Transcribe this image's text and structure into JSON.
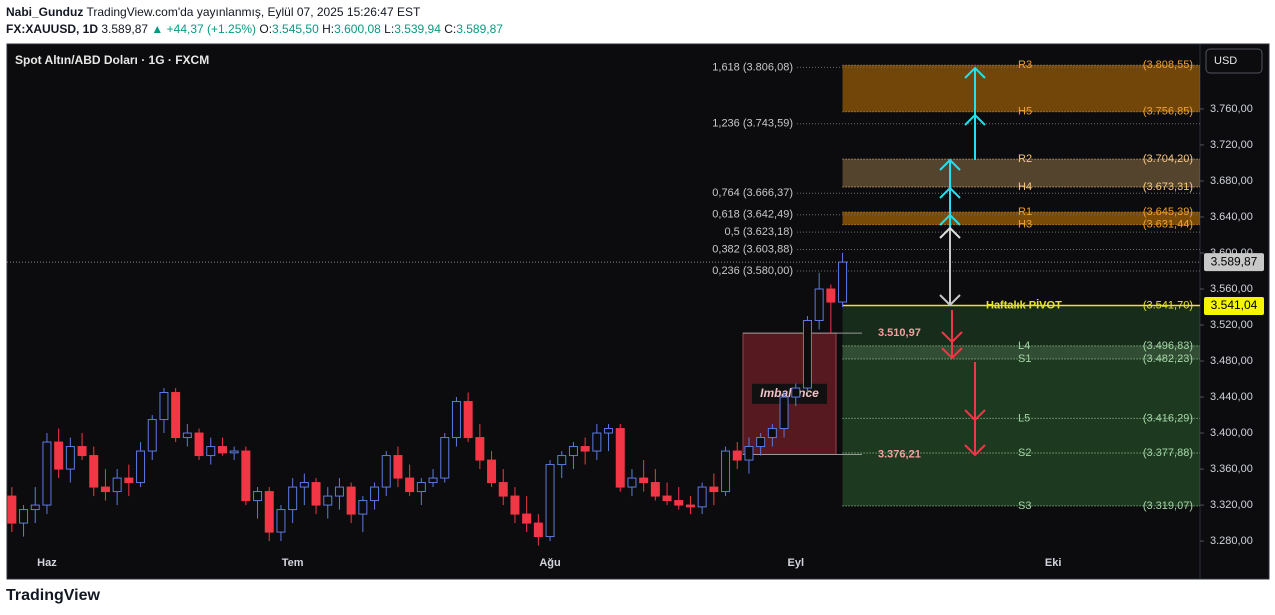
{
  "header": {
    "author": "Nabi_Gunduz",
    "published": "TradingView.com'da yayınlanmış, Eylül 07, 2025 15:26:47 EST",
    "symbol": "FX:XAUUSD, 1D",
    "last": "3.589,87",
    "change": "▲ +44,37 (+1.25%)",
    "ohlc": [
      {
        "key": "O:",
        "value": "3.545,50"
      },
      {
        "key": "H:",
        "value": "3.600,08"
      },
      {
        "key": "L:",
        "value": "3.539,94"
      },
      {
        "key": "C:",
        "value": "3.589,87"
      }
    ]
  },
  "footer": {
    "brand": "TradingView"
  },
  "chart_data": {
    "type": "candlestick",
    "title": "Spot Altın/ABD Doları · 1G · FXCM",
    "currency": "USD",
    "up_color": "#5b7be0",
    "down_color": "#f23645",
    "grid": false,
    "categories": [
      null,
      null,
      null,
      "Haz",
      null,
      null,
      null,
      null,
      null,
      null,
      null,
      null,
      null,
      null,
      null,
      null,
      null,
      null,
      null,
      null,
      null,
      null,
      null,
      null,
      "Tem",
      null,
      null,
      null,
      null,
      null,
      null,
      null,
      null,
      null,
      null,
      null,
      null,
      null,
      null,
      null,
      null,
      null,
      null,
      null,
      null,
      null,
      "Ağu",
      null,
      null,
      null,
      null,
      null,
      null,
      null,
      null,
      null,
      null,
      null,
      null,
      null,
      null,
      null,
      null,
      null,
      null,
      null,
      null,
      "Eyl",
      null,
      null,
      null,
      null,
      null,
      null,
      null,
      null,
      null,
      null,
      null,
      null,
      null,
      null,
      null,
      null,
      null,
      null,
      null,
      null,
      null,
      "Eki",
      null,
      null,
      null,
      null,
      null,
      null,
      null,
      null,
      null,
      null,
      null
    ],
    "open": [
      3330,
      3300,
      3315,
      3320,
      3390,
      3360,
      3385,
      3375,
      3340,
      3335,
      3350,
      3345,
      3380,
      3415,
      3445,
      3395,
      3400,
      3375,
      3385,
      3378,
      3380,
      3325,
      3335,
      3290,
      3315,
      3340,
      3345,
      3320,
      3330,
      3340,
      3310,
      3325,
      3340,
      3375,
      3350,
      3335,
      3345,
      3350,
      3395,
      3435,
      3395,
      3370,
      3345,
      3330,
      3310,
      3300,
      3285,
      3365,
      3375,
      3385,
      3380,
      3400,
      3405,
      3340,
      3350,
      3345,
      3330,
      3325,
      3320,
      3318,
      3340,
      3335,
      3380,
      3370,
      3385,
      3395,
      3405,
      3440,
      3450,
      3525,
      3560,
      3545.5,
      null,
      null,
      null,
      null,
      null,
      null,
      null,
      null,
      null,
      null,
      null,
      null,
      null,
      null,
      null,
      null,
      null,
      null,
      null,
      null,
      null,
      null,
      null,
      null,
      null,
      null,
      null,
      null,
      null
    ],
    "high": [
      3340,
      3320,
      3340,
      3400,
      3405,
      3395,
      3400,
      3385,
      3360,
      3360,
      3365,
      3390,
      3420,
      3450,
      3450,
      3410,
      3405,
      3395,
      3395,
      3385,
      3385,
      3340,
      3340,
      3320,
      3350,
      3355,
      3350,
      3340,
      3350,
      3345,
      3330,
      3345,
      3380,
      3385,
      3365,
      3350,
      3360,
      3400,
      3440,
      3445,
      3410,
      3380,
      3360,
      3340,
      3330,
      3310,
      3370,
      3380,
      3390,
      3395,
      3410,
      3410,
      3410,
      3360,
      3370,
      3360,
      3345,
      3340,
      3330,
      3345,
      3355,
      3385,
      3390,
      3395,
      3400,
      3410,
      3445,
      3455,
      3530,
      3578,
      3565,
      3600.08,
      null,
      null,
      null,
      null,
      null,
      null,
      null,
      null,
      null,
      null,
      null,
      null,
      null,
      null,
      null,
      null,
      null,
      null,
      null,
      null,
      null,
      null,
      null,
      null,
      null,
      null,
      null,
      null,
      null
    ],
    "low": [
      3290,
      3285,
      3300,
      3310,
      3350,
      3345,
      3370,
      3330,
      3325,
      3320,
      3330,
      3340,
      3370,
      3400,
      3390,
      3385,
      3370,
      3365,
      3375,
      3370,
      3320,
      3305,
      3280,
      3280,
      3300,
      3320,
      3310,
      3305,
      3315,
      3300,
      3290,
      3315,
      3330,
      3340,
      3330,
      3320,
      3340,
      3345,
      3385,
      3390,
      3360,
      3340,
      3320,
      3300,
      3290,
      3275,
      3280,
      3350,
      3360,
      3365,
      3370,
      3380,
      3335,
      3330,
      3335,
      3325,
      3320,
      3315,
      3310,
      3310,
      3320,
      3330,
      3360,
      3355,
      3375,
      3385,
      3395,
      3430,
      3445,
      3515,
      3510.97,
      3539.94,
      null,
      null,
      null,
      null,
      null,
      null,
      null,
      null,
      null,
      null,
      null,
      null,
      null,
      null,
      null,
      null,
      null,
      null,
      null,
      null,
      null,
      null,
      null,
      null,
      null,
      null,
      null,
      null,
      null
    ],
    "close": [
      3300,
      3315,
      3320,
      3390,
      3360,
      3385,
      3375,
      3340,
      3335,
      3350,
      3345,
      3380,
      3415,
      3445,
      3395,
      3400,
      3375,
      3385,
      3378,
      3380,
      3325,
      3335,
      3290,
      3315,
      3340,
      3345,
      3320,
      3330,
      3340,
      3310,
      3325,
      3340,
      3375,
      3350,
      3335,
      3345,
      3350,
      3395,
      3435,
      3395,
      3370,
      3345,
      3330,
      3310,
      3300,
      3285,
      3365,
      3375,
      3385,
      3380,
      3400,
      3405,
      3340,
      3350,
      3345,
      3330,
      3325,
      3320,
      3318,
      3340,
      3335,
      3380,
      3370,
      3385,
      3395,
      3405,
      3440,
      3450,
      3525,
      3560,
      3545.5,
      3589.87,
      null,
      null,
      null,
      null,
      null,
      null,
      null,
      null,
      null,
      null,
      null,
      null,
      null,
      null,
      null,
      null,
      null,
      null,
      null,
      null,
      null,
      null,
      null,
      null,
      null,
      null,
      null,
      null,
      null
    ],
    "ylim": [
      3239,
      3831
    ],
    "yticks": [
      {
        "value": 3280,
        "label": "3.280,00"
      },
      {
        "value": 3320,
        "label": "3.320,00"
      },
      {
        "value": 3360,
        "label": "3.360,00"
      },
      {
        "value": 3400,
        "label": "3.400,00"
      },
      {
        "value": 3440,
        "label": "3.440,00"
      },
      {
        "value": 3480,
        "label": "3.480,00"
      },
      {
        "value": 3520,
        "label": "3.520,00"
      },
      {
        "value": 3560,
        "label": "3.560,00"
      },
      {
        "value": 3600,
        "label": "3.600,00"
      },
      {
        "value": 3640,
        "label": "3.640,00"
      },
      {
        "value": 3680,
        "label": "3.680,00"
      },
      {
        "value": 3720,
        "label": "3.720,00"
      },
      {
        "value": 3760,
        "label": "3.760,00"
      }
    ],
    "last_price": {
      "value": 3589.87,
      "label": "3.589,87"
    },
    "pivot_tag": {
      "value": 3541.04,
      "label": "3.541,04"
    },
    "fib_levels": [
      {
        "value": 3806.08,
        "label": "1,618 (3.806,08)"
      },
      {
        "value": 3743.59,
        "label": "1,236 (3.743,59)"
      },
      {
        "value": 3666.37,
        "label": "0,764 (3.666,37)"
      },
      {
        "value": 3642.49,
        "label": "0,618 (3.642,49)"
      },
      {
        "value": 3623.18,
        "label": "0,5 (3.623,18)"
      },
      {
        "value": 3603.88,
        "label": "0,382 (3.603,88)"
      },
      {
        "value": 3580,
        "label": "0,236 (3.580,00)"
      }
    ],
    "pivots": [
      {
        "name": "R3",
        "value": 3808.55,
        "label": "(3.808,55)",
        "color": "#f0a030"
      },
      {
        "name": "H5",
        "value": 3756.85,
        "label": "(3.756,85)",
        "color": "#f0a030"
      },
      {
        "name": "R2",
        "value": 3704.2,
        "label": "(3.704,20)",
        "color": "#f5c880"
      },
      {
        "name": "H4",
        "value": 3673.31,
        "label": "(3.673,31)",
        "color": "#f5c880"
      },
      {
        "name": "R1",
        "value": 3645.39,
        "label": "(3.645,39)",
        "color": "#f0a030"
      },
      {
        "name": "H3",
        "value": 3631.44,
        "label": "(3.631,44)",
        "color": "#f0a030"
      },
      {
        "name": "Haftalık PİVOT",
        "value": 3541.7,
        "label": "(3.541,70)",
        "color": "#e6e62e"
      },
      {
        "name": "L4",
        "value": 3496.83,
        "label": "(3.496,83)",
        "color": "#a5d6a7"
      },
      {
        "name": "S1",
        "value": 3482.23,
        "label": "(3.482,23)",
        "color": "#a5d6a7"
      },
      {
        "name": "L5",
        "value": 3416.29,
        "label": "(3.416,29)",
        "color": "#a5d6a7"
      },
      {
        "name": "S2",
        "value": 3377.88,
        "label": "(3.377,88)",
        "color": "#a5d6a7"
      },
      {
        "name": "S3",
        "value": 3319.07,
        "label": "(3.319,07)",
        "color": "#a5d6a7"
      }
    ],
    "imbalance": {
      "label": "Imbalance",
      "high": {
        "value": 3510.97,
        "label": "3.510,97"
      },
      "low": {
        "value": 3376.21,
        "label": "3.376,21"
      }
    }
  }
}
